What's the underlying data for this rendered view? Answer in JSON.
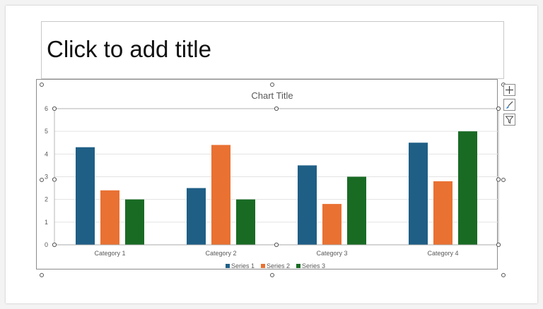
{
  "slide": {
    "title_placeholder": "Click to add title"
  },
  "chart_tools": [
    {
      "name": "chart-elements-button",
      "icon": "plus-icon"
    },
    {
      "name": "chart-styles-button",
      "icon": "brush-icon"
    },
    {
      "name": "chart-filters-button",
      "icon": "filter-icon"
    }
  ],
  "colors": {
    "series1": "#1f5f86",
    "series2": "#e97132",
    "series3": "#196b24"
  },
  "chart_data": {
    "type": "bar",
    "title": "Chart Title",
    "categories": [
      "Category 1",
      "Category 2",
      "Category 3",
      "Category 4"
    ],
    "series": [
      {
        "name": "Series 1",
        "values": [
          4.3,
          2.5,
          3.5,
          4.5
        ],
        "color": "#1f5f86"
      },
      {
        "name": "Series 2",
        "values": [
          2.4,
          4.4,
          1.8,
          2.8
        ],
        "color": "#e97132"
      },
      {
        "name": "Series 3",
        "values": [
          2,
          2,
          3,
          5
        ],
        "color": "#196b24"
      }
    ],
    "ylim": [
      0,
      6
    ],
    "yticks": [
      "0",
      "1",
      "2",
      "3",
      "4",
      "5",
      "6"
    ],
    "grid": true,
    "legend": "bottom"
  }
}
